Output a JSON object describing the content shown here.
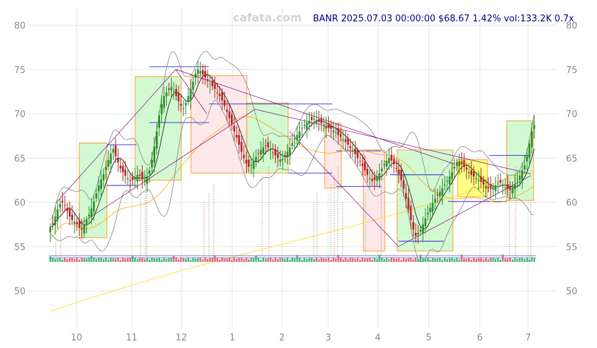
{
  "watermark": "cafata.com",
  "title": "BANR 2025.07.03 00:00:00 $68.67 1.42% vol:133.2K 0.7x",
  "chart_data": {
    "type": "candlestick",
    "ticker": "BANR",
    "last_close": 68.67,
    "change_pct": 1.42,
    "volume": "133.2K",
    "relative_volume": "0.7x",
    "ylim": [
      46,
      82
    ],
    "y_ticks": [
      50,
      55,
      60,
      65,
      70,
      75,
      80
    ],
    "x_tick_labels": [
      "10",
      "11",
      "12",
      "1",
      "2",
      "3",
      "4",
      "5",
      "6",
      "7"
    ],
    "grid": true,
    "colors": {
      "up": "#228b22",
      "down": "#b22222",
      "sma_long": "#ffd700",
      "sma_mid": "#ffa500",
      "sma_short": "#000000",
      "bands": "#808080",
      "trend": "#800080",
      "level": "#0000cd",
      "box_up": "#c8f7c8",
      "box_down": "#fde3e3",
      "box_flat": "#ffff66"
    },
    "closes": [
      57.2,
      57.5,
      58.4,
      59.2,
      59.8,
      60.0,
      59.6,
      59.0,
      58.4,
      58.0,
      57.8,
      57.5,
      57.1,
      56.9,
      57.4,
      58.0,
      58.6,
      59.3,
      60.1,
      61.0,
      61.9,
      62.6,
      63.2,
      64.0,
      64.8,
      65.5,
      66.0,
      65.2,
      64.5,
      63.8,
      63.4,
      63.0,
      62.7,
      62.4,
      62.5,
      62.8,
      63.1,
      63.0,
      62.6,
      62.5,
      62.9,
      63.6,
      64.8,
      66.3,
      68.0,
      69.8,
      71.1,
      72.0,
      72.4,
      72.7,
      73.0,
      72.6,
      72.0,
      71.4,
      70.9,
      70.6,
      71.2,
      72.0,
      72.8,
      73.6,
      74.5,
      75.0,
      74.8,
      74.4,
      74.1,
      73.7,
      73.4,
      73.1,
      72.8,
      72.4,
      72.0,
      71.5,
      70.9,
      70.2,
      69.5,
      68.8,
      68.0,
      67.3,
      66.5,
      65.7,
      65.0,
      64.4,
      64.0,
      64.2,
      64.6,
      65.1,
      65.5,
      65.9,
      66.2,
      66.4,
      66.2,
      65.9,
      65.6,
      65.3,
      65.0,
      64.8,
      64.9,
      65.2,
      65.7,
      66.2,
      66.7,
      67.2,
      67.6,
      68.0,
      68.4,
      68.7,
      69.0,
      69.2,
      69.3,
      69.4,
      69.3,
      69.1,
      68.9,
      68.7,
      68.6,
      68.4,
      68.3,
      68.1,
      67.9,
      67.6,
      67.4,
      67.1,
      66.8,
      66.5,
      66.1,
      65.8,
      65.4,
      65.0,
      64.6,
      64.1,
      63.6,
      63.1,
      62.7,
      62.4,
      62.5,
      62.9,
      63.3,
      63.8,
      64.3,
      64.7,
      65.0,
      64.7,
      64.3,
      63.8,
      63.2,
      62.5,
      61.5,
      60.4,
      59.2,
      58.0,
      56.9,
      56.2,
      56.4,
      56.9,
      57.5,
      58.2,
      58.8,
      59.4,
      59.9,
      60.4,
      60.8,
      61.2,
      61.6,
      62.0,
      62.4,
      62.9,
      63.4,
      64.0,
      64.5,
      64.6,
      64.3,
      64.0,
      63.7,
      63.4,
      63.1,
      62.9,
      62.7,
      62.5,
      62.3,
      62.0,
      61.8,
      61.6,
      61.5,
      61.7,
      61.9,
      62.1,
      62.2,
      62.0,
      61.7,
      61.5,
      61.4,
      61.6,
      62.0,
      62.5,
      63.0,
      63.6,
      64.2,
      65.2,
      66.6,
      68.0,
      68.7
    ]
  }
}
